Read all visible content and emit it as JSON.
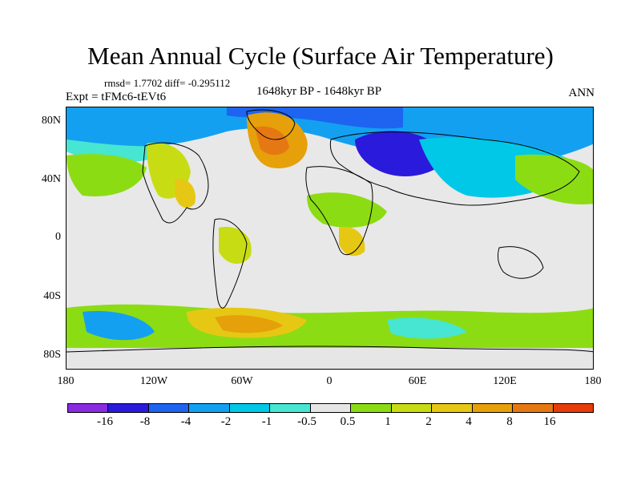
{
  "title": "Mean Annual Cycle (Surface Air Temperature)",
  "stats": "rmsd= 1.7702 diff= -0.295112",
  "expt": "Expt = tFMc6-tEVt6",
  "period": "1648kyr BP - 1648kyr BP",
  "season": "ANN",
  "lat_labels": [
    "80N",
    "40N",
    "0",
    "40S",
    "80S"
  ],
  "lon_labels": [
    "180",
    "120W",
    "60W",
    "0",
    "60E",
    "120E",
    "180"
  ],
  "legend": {
    "colors": [
      "#8a2be2",
      "#2a1adb",
      "#1e64f0",
      "#14a0f0",
      "#00c8e6",
      "#46e6d2",
      "#e6e6e6",
      "#8cdc14",
      "#c8dc14",
      "#e6c814",
      "#e6a00a",
      "#e67814",
      "#e63c0a"
    ],
    "labels": [
      "-16",
      "-8",
      "-4",
      "-2",
      "-1",
      "-0.5",
      "0.5",
      "1",
      "2",
      "4",
      "8",
      "16"
    ]
  }
}
